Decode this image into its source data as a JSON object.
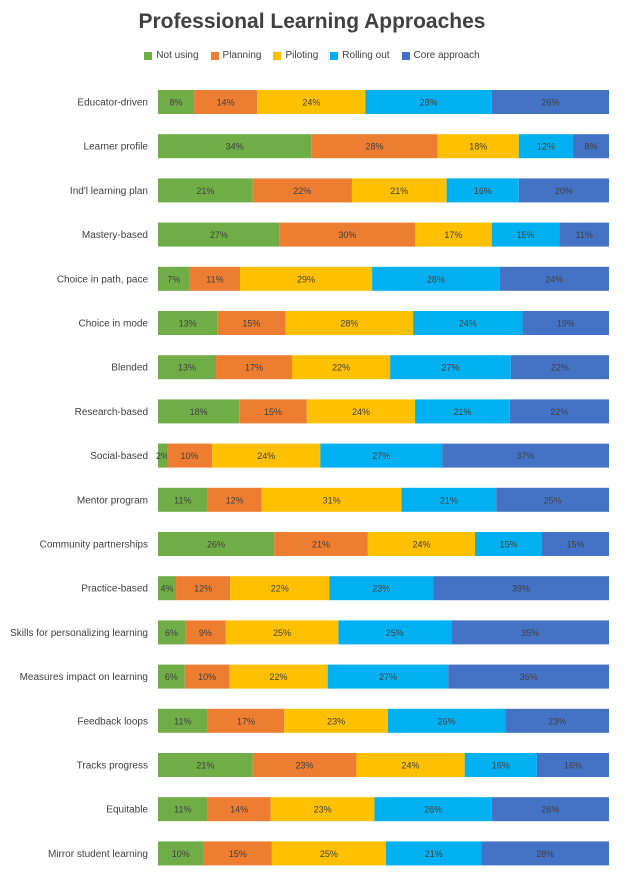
{
  "chart_data": {
    "type": "bar",
    "orientation": "horizontal",
    "stacked": "100%",
    "title": "Professional Learning Approaches",
    "legend_position": "top",
    "grid": false,
    "categories": [
      "Educator-driven",
      "Learner profile",
      "Ind'l learning plan",
      "Mastery-based",
      "Choice in path, pace",
      "Choice in mode",
      "Blended",
      "Research-based",
      "Social-based",
      "Mentor program",
      "Community partnerships",
      "Practice-based",
      "Skills for personalizing learning",
      "Measures impact on learning",
      "Feedback loops",
      "Tracks progress",
      "Equitable",
      "Mirror student learning"
    ],
    "series": [
      {
        "name": "Not using",
        "color": "#70AD47",
        "values": [
          8,
          34,
          21,
          27,
          7,
          13,
          13,
          18,
          2,
          11,
          26,
          4,
          6,
          6,
          11,
          21,
          11,
          10
        ]
      },
      {
        "name": "Planning",
        "color": "#ED7D31",
        "values": [
          14,
          28,
          22,
          30,
          11,
          15,
          17,
          15,
          10,
          12,
          21,
          12,
          9,
          10,
          17,
          23,
          14,
          15
        ]
      },
      {
        "name": "Piloting",
        "color": "#FFC000",
        "values": [
          24,
          18,
          21,
          17,
          29,
          28,
          22,
          24,
          24,
          31,
          24,
          22,
          25,
          22,
          23,
          24,
          23,
          25
        ]
      },
      {
        "name": "Rolling out",
        "color": "#00B0F0",
        "values": [
          28,
          12,
          16,
          15,
          28,
          24,
          27,
          21,
          27,
          21,
          15,
          23,
          25,
          27,
          26,
          16,
          26,
          21
        ]
      },
      {
        "name": "Core approach",
        "color": "#4472C4",
        "values": [
          26,
          8,
          20,
          11,
          24,
          19,
          22,
          22,
          37,
          25,
          15,
          39,
          35,
          36,
          23,
          16,
          26,
          28
        ]
      }
    ]
  }
}
